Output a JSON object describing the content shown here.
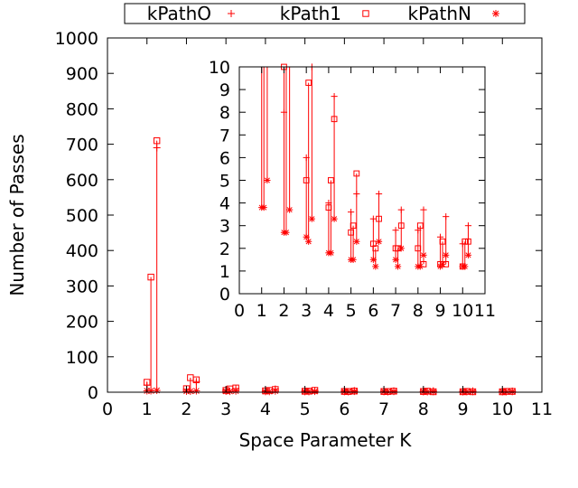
{
  "chart_data": {
    "type": "scatter",
    "xlabel": "Space Parameter K",
    "ylabel": "Number of Passes",
    "xlim": [
      0,
      11
    ],
    "ylim": [
      0,
      1000
    ],
    "xticks": [
      "0",
      "1",
      "2",
      "3",
      "4",
      "5",
      "6",
      "7",
      "8",
      "9",
      "10",
      "11"
    ],
    "yticks": [
      "0",
      "100",
      "200",
      "300",
      "400",
      "500",
      "600",
      "700",
      "800",
      "900",
      "1000"
    ],
    "grid": false,
    "legend": {
      "placement": "top-outside"
    },
    "marker_color": "#ff0000",
    "series": [
      {
        "name": "kPathO",
        "marker": "plus",
        "x": [
          1.0,
          1.25,
          2.0,
          2.25,
          3.0,
          3.25,
          4.0,
          4.25,
          5.0,
          5.25,
          6.0,
          6.25,
          7.0,
          7.25,
          8.0,
          8.25,
          9.0,
          9.25,
          10.0,
          10.25
        ],
        "y": [
          20,
          690,
          8,
          30,
          6,
          10,
          4,
          8.7,
          3.6,
          4.4,
          3.3,
          4.4,
          2.8,
          3.7,
          2.8,
          3.7,
          2.5,
          3.4,
          2.2,
          3.0
        ]
      },
      {
        "name": "kPath1",
        "marker": "square",
        "x": [
          1.0,
          1.1,
          1.25,
          2.0,
          2.1,
          2.25,
          3.0,
          3.1,
          3.25,
          4.0,
          4.1,
          4.25,
          5.0,
          5.1,
          5.25,
          6.0,
          6.1,
          6.25,
          7.0,
          7.1,
          7.25,
          8.0,
          8.1,
          8.25,
          9.0,
          9.1,
          9.25,
          10.0,
          10.1,
          10.25
        ],
        "y": [
          28,
          325,
          710,
          10,
          41,
          35,
          5,
          9.3,
          12,
          3.8,
          5,
          7.7,
          2.7,
          3.0,
          5.3,
          2.2,
          2.0,
          3.3,
          2.0,
          2.0,
          3.0,
          2.0,
          3.0,
          1.3,
          1.3,
          2.3,
          1.3,
          1.2,
          2.3,
          2.3
        ]
      },
      {
        "name": "kPathN",
        "marker": "star",
        "x": [
          1.0,
          1.1,
          1.25,
          2.0,
          2.1,
          2.25,
          3.0,
          3.1,
          3.25,
          4.0,
          4.1,
          4.25,
          5.0,
          5.1,
          5.25,
          6.0,
          6.1,
          6.25,
          7.0,
          7.1,
          7.25,
          8.0,
          8.1,
          8.25,
          9.0,
          9.1,
          9.25,
          10.0,
          10.1,
          10.25
        ],
        "y": [
          3.8,
          3.8,
          5.0,
          2.7,
          2.7,
          3.7,
          2.5,
          2.3,
          3.3,
          1.8,
          1.8,
          3.3,
          1.5,
          1.5,
          2.3,
          1.5,
          1.2,
          2.3,
          1.5,
          1.2,
          2.0,
          1.2,
          1.2,
          1.7,
          1.2,
          1.3,
          1.7,
          1.2,
          1.2,
          1.7
        ]
      }
    ],
    "inset": {
      "xlim": [
        0,
        11
      ],
      "ylim": [
        0,
        10
      ],
      "xticks": [
        "0",
        "1",
        "2",
        "3",
        "4",
        "5",
        "6",
        "7",
        "8",
        "9",
        "10",
        "11"
      ],
      "yticks": [
        "0",
        "1",
        "2",
        "3",
        "4",
        "5",
        "6",
        "7",
        "8",
        "9",
        "10"
      ]
    }
  }
}
